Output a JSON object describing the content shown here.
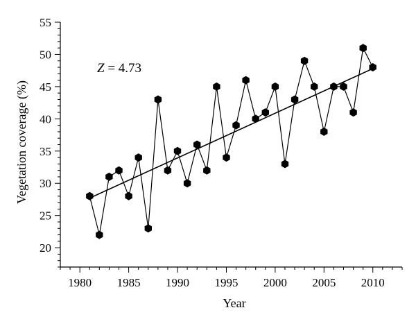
{
  "chart_data": {
    "type": "scatter",
    "xlabel": "Year",
    "ylabel": "Vegetation coverage (%)",
    "annotation": {
      "prefix": "Z",
      "text": " = 4.73"
    },
    "xlim": [
      1978,
      2013
    ],
    "ylim": [
      17,
      55
    ],
    "x_ticks": [
      1980,
      1985,
      1990,
      1995,
      2000,
      2005,
      2010
    ],
    "y_ticks": [
      20,
      25,
      30,
      35,
      40,
      45,
      50,
      55
    ],
    "grid": false,
    "legend": "none",
    "series": [
      {
        "x": [
          1981,
          1982,
          1983,
          1984,
          1985,
          1986,
          1987,
          1988,
          1989,
          1990,
          1991,
          1992,
          1993,
          1994,
          1995,
          1996,
          1997,
          1998,
          1999,
          2000,
          2001,
          2002,
          2003,
          2004,
          2005,
          2006,
          2007,
          2008,
          2009,
          2010
        ],
        "values": [
          28,
          22,
          31,
          32,
          28,
          34,
          23,
          43,
          32,
          35,
          30,
          36,
          32,
          45,
          34,
          39,
          46,
          40,
          41,
          45,
          33,
          43,
          49,
          45,
          38,
          45,
          45,
          41,
          51,
          48
        ],
        "color": "#000000",
        "marker": "hexagon"
      }
    ],
    "trend_line": {
      "x": [
        1981,
        2010
      ],
      "y": [
        27.7,
        47.8
      ]
    }
  }
}
